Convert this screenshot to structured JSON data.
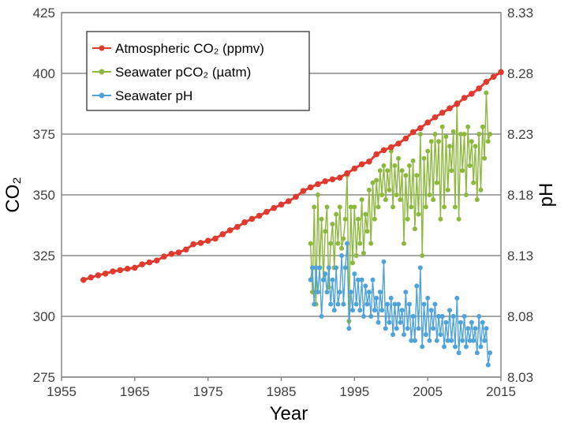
{
  "chart_data": {
    "type": "line",
    "title": "",
    "xlabel": "Year",
    "ylabel": "CO₂",
    "ylabel_right": "pH",
    "xlim": [
      1955,
      2015
    ],
    "ylim": [
      275,
      425
    ],
    "ylim_right": [
      8.03,
      8.33
    ],
    "x_ticks": [
      "1955",
      "1965",
      "1975",
      "1985",
      "1995",
      "2005",
      "2015"
    ],
    "y_ticks": [
      "275",
      "300",
      "325",
      "350",
      "375",
      "400",
      "425"
    ],
    "y_ticks_right": [
      "8.03",
      "8.08",
      "8.13",
      "8.18",
      "8.23",
      "8.28",
      "8.33"
    ],
    "grid": "horizontal",
    "legend_position": "top-left",
    "series": [
      {
        "name": "Atmospheric CO₂ (ppmv)",
        "axis": "left",
        "color": "#e03a2f",
        "points": [
          [
            1958,
            315
          ],
          [
            1959,
            316
          ],
          [
            1960,
            316.9
          ],
          [
            1961,
            317.6
          ],
          [
            1962,
            318.5
          ],
          [
            1963,
            319
          ],
          [
            1964,
            319.6
          ],
          [
            1965,
            320
          ],
          [
            1966,
            321.4
          ],
          [
            1967,
            322.2
          ],
          [
            1968,
            323
          ],
          [
            1969,
            324.6
          ],
          [
            1970,
            325.7
          ],
          [
            1971,
            326.3
          ],
          [
            1972,
            327.5
          ],
          [
            1973,
            329.7
          ],
          [
            1974,
            330.2
          ],
          [
            1975,
            331.1
          ],
          [
            1976,
            332
          ],
          [
            1977,
            333.8
          ],
          [
            1978,
            335.4
          ],
          [
            1979,
            336.8
          ],
          [
            1980,
            338.7
          ],
          [
            1981,
            340.1
          ],
          [
            1982,
            341.4
          ],
          [
            1983,
            343
          ],
          [
            1984,
            344.6
          ],
          [
            1985,
            346
          ],
          [
            1986,
            347.4
          ],
          [
            1987,
            349.2
          ],
          [
            1988,
            351.6
          ],
          [
            1989,
            353.1
          ],
          [
            1990,
            354.4
          ],
          [
            1991,
            355.6
          ],
          [
            1992,
            356.4
          ],
          [
            1993,
            357.1
          ],
          [
            1994,
            358.9
          ],
          [
            1995,
            360.8
          ],
          [
            1996,
            362.6
          ],
          [
            1997,
            363.7
          ],
          [
            1998,
            366.7
          ],
          [
            1999,
            368.4
          ],
          [
            2000,
            369.6
          ],
          [
            2001,
            371.1
          ],
          [
            2002,
            373.2
          ],
          [
            2003,
            375.8
          ],
          [
            2004,
            377.5
          ],
          [
            2005,
            379.8
          ],
          [
            2006,
            381.9
          ],
          [
            2007,
            383.8
          ],
          [
            2008,
            385.6
          ],
          [
            2009,
            387.4
          ],
          [
            2010,
            389.9
          ],
          [
            2011,
            391.6
          ],
          [
            2012,
            393.8
          ],
          [
            2013,
            396.5
          ],
          [
            2014,
            398.6
          ],
          [
            2015,
            400.5
          ]
        ]
      },
      {
        "name": "Seawater pCO₂ (µatm)",
        "axis": "left",
        "color": "#8db83f",
        "points": [
          [
            1989,
            330
          ],
          [
            1989.25,
            310
          ],
          [
            1989.5,
            345
          ],
          [
            1989.75,
            305
          ],
          [
            1990,
            350
          ],
          [
            1990.25,
            320
          ],
          [
            1990.5,
            340
          ],
          [
            1990.75,
            315
          ],
          [
            1991,
            335
          ],
          [
            1991.25,
            345
          ],
          [
            1991.5,
            312
          ],
          [
            1991.75,
            330
          ],
          [
            1992,
            338
          ],
          [
            1992.25,
            320
          ],
          [
            1992.5,
            342
          ],
          [
            1992.75,
            330
          ],
          [
            1993,
            345
          ],
          [
            1993.25,
            328
          ],
          [
            1993.5,
            332
          ],
          [
            1993.75,
            340
          ],
          [
            1994,
            358
          ],
          [
            1994.25,
            298
          ],
          [
            1994.5,
            345
          ],
          [
            1994.75,
            322
          ],
          [
            1995,
            345
          ],
          [
            1995.25,
            325
          ],
          [
            1995.5,
            340
          ],
          [
            1995.75,
            330
          ],
          [
            1996,
            348
          ],
          [
            1996.25,
            326
          ],
          [
            1996.5,
            342
          ],
          [
            1996.75,
            335
          ],
          [
            1997,
            352
          ],
          [
            1997.25,
            330
          ],
          [
            1997.5,
            355
          ],
          [
            1997.75,
            340
          ],
          [
            1998,
            356
          ],
          [
            1998.25,
            345
          ],
          [
            1998.5,
            360
          ],
          [
            1998.75,
            350
          ],
          [
            1999,
            362
          ],
          [
            1999.25,
            348
          ],
          [
            1999.5,
            360
          ],
          [
            1999.75,
            352
          ],
          [
            2000,
            368
          ],
          [
            2000.25,
            345
          ],
          [
            2000.5,
            362
          ],
          [
            2000.75,
            350
          ],
          [
            2001,
            365
          ],
          [
            2001.25,
            348
          ],
          [
            2001.5,
            360
          ],
          [
            2001.75,
            330
          ],
          [
            2002,
            358
          ],
          [
            2002.25,
            340
          ],
          [
            2002.5,
            362
          ],
          [
            2002.75,
            345
          ],
          [
            2003,
            364
          ],
          [
            2003.25,
            336
          ],
          [
            2003.5,
            358
          ],
          [
            2003.75,
            342
          ],
          [
            2004,
            375
          ],
          [
            2004.25,
            325
          ],
          [
            2004.5,
            365
          ],
          [
            2004.75,
            345
          ],
          [
            2005,
            368
          ],
          [
            2005.25,
            350
          ],
          [
            2005.5,
            372
          ],
          [
            2005.75,
            348
          ],
          [
            2006,
            375
          ],
          [
            2006.25,
            355
          ],
          [
            2006.5,
            372
          ],
          [
            2006.75,
            340
          ],
          [
            2007,
            378
          ],
          [
            2007.25,
            345
          ],
          [
            2007.5,
            374
          ],
          [
            2007.75,
            352
          ],
          [
            2008,
            370
          ],
          [
            2008.25,
            360
          ],
          [
            2008.5,
            376
          ],
          [
            2008.75,
            345
          ],
          [
            2009,
            388
          ],
          [
            2009.25,
            340
          ],
          [
            2009.5,
            375
          ],
          [
            2009.75,
            360
          ],
          [
            2010,
            375
          ],
          [
            2010.25,
            350
          ],
          [
            2010.5,
            378
          ],
          [
            2010.75,
            362
          ],
          [
            2011,
            372
          ],
          [
            2011.25,
            355
          ],
          [
            2011.5,
            370
          ],
          [
            2011.75,
            348
          ],
          [
            2012,
            375
          ],
          [
            2012.25,
            352
          ],
          [
            2012.5,
            378
          ],
          [
            2012.75,
            365
          ],
          [
            2013,
            392
          ],
          [
            2013.25,
            372
          ],
          [
            2013.5,
            375
          ]
        ]
      },
      {
        "name": "Seawater pH",
        "axis": "right",
        "color": "#4fa3d8",
        "points": [
          [
            1989,
            8.11
          ],
          [
            1989.25,
            8.12
          ],
          [
            1989.5,
            8.09
          ],
          [
            1989.75,
            8.12
          ],
          [
            1990,
            8.1
          ],
          [
            1990.25,
            8.12
          ],
          [
            1990.5,
            8.08
          ],
          [
            1990.75,
            8.11
          ],
          [
            1991,
            8.115
          ],
          [
            1991.25,
            8.1
          ],
          [
            1991.5,
            8.12
          ],
          [
            1991.75,
            8.09
          ],
          [
            1992,
            8.11
          ],
          [
            1992.25,
            8.085
          ],
          [
            1992.5,
            8.12
          ],
          [
            1992.75,
            8.09
          ],
          [
            1993,
            8.1
          ],
          [
            1993.25,
            8.13
          ],
          [
            1993.5,
            8.09
          ],
          [
            1993.75,
            8.12
          ],
          [
            1994,
            8.14
          ],
          [
            1994.25,
            8.07
          ],
          [
            1994.5,
            8.1
          ],
          [
            1994.75,
            8.085
          ],
          [
            1995,
            8.115
          ],
          [
            1995.25,
            8.09
          ],
          [
            1995.5,
            8.11
          ],
          [
            1995.75,
            8.085
          ],
          [
            1996,
            8.11
          ],
          [
            1996.25,
            8.08
          ],
          [
            1996.5,
            8.105
          ],
          [
            1996.75,
            8.09
          ],
          [
            1997,
            8.1
          ],
          [
            1997.25,
            8.08
          ],
          [
            1997.5,
            8.11
          ],
          [
            1997.75,
            8.085
          ],
          [
            1998,
            8.095
          ],
          [
            1998.25,
            8.075
          ],
          [
            1998.5,
            8.1
          ],
          [
            1998.75,
            8.085
          ],
          [
            1999,
            8.125
          ],
          [
            1999.25,
            8.07
          ],
          [
            1999.5,
            8.09
          ],
          [
            1999.75,
            8.075
          ],
          [
            2000,
            8.095
          ],
          [
            2000.25,
            8.065
          ],
          [
            2000.5,
            8.09
          ],
          [
            2000.75,
            8.07
          ],
          [
            2001,
            8.09
          ],
          [
            2001.25,
            8.075
          ],
          [
            2001.5,
            8.085
          ],
          [
            2001.75,
            8.065
          ],
          [
            2002,
            8.1
          ],
          [
            2002.25,
            8.07
          ],
          [
            2002.5,
            8.09
          ],
          [
            2002.75,
            8.06
          ],
          [
            2003,
            8.08
          ],
          [
            2003.25,
            8.06
          ],
          [
            2003.5,
            8.105
          ],
          [
            2003.75,
            8.07
          ],
          [
            2004,
            8.12
          ],
          [
            2004.25,
            8.055
          ],
          [
            2004.5,
            8.09
          ],
          [
            2004.75,
            8.065
          ],
          [
            2005,
            8.095
          ],
          [
            2005.25,
            8.06
          ],
          [
            2005.5,
            8.085
          ],
          [
            2005.75,
            8.07
          ],
          [
            2006,
            8.09
          ],
          [
            2006.25,
            8.06
          ],
          [
            2006.5,
            8.08
          ],
          [
            2006.75,
            8.065
          ],
          [
            2007,
            8.08
          ],
          [
            2007.25,
            8.055
          ],
          [
            2007.5,
            8.075
          ],
          [
            2007.75,
            8.06
          ],
          [
            2008,
            8.085
          ],
          [
            2008.25,
            8.06
          ],
          [
            2008.5,
            8.08
          ],
          [
            2008.75,
            8.055
          ],
          [
            2009,
            8.095
          ],
          [
            2009.25,
            8.05
          ],
          [
            2009.5,
            8.075
          ],
          [
            2009.75,
            8.06
          ],
          [
            2010,
            8.08
          ],
          [
            2010.25,
            8.055
          ],
          [
            2010.5,
            8.07
          ],
          [
            2010.75,
            8.06
          ],
          [
            2011,
            8.075
          ],
          [
            2011.25,
            8.06
          ],
          [
            2011.5,
            8.07
          ],
          [
            2011.75,
            8.05
          ],
          [
            2012,
            8.08
          ],
          [
            2012.25,
            8.055
          ],
          [
            2012.5,
            8.075
          ],
          [
            2012.75,
            8.06
          ],
          [
            2013,
            8.07
          ],
          [
            2013.25,
            8.04
          ],
          [
            2013.5,
            8.05
          ]
        ]
      }
    ]
  }
}
